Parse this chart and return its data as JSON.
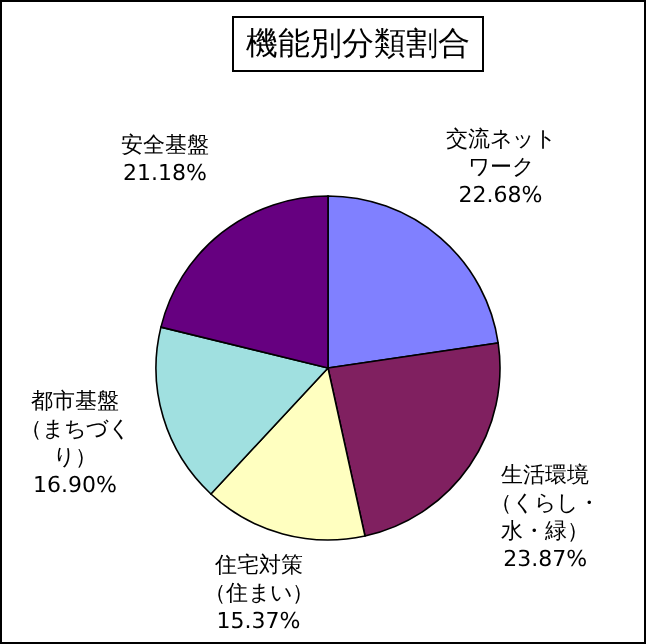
{
  "chart_data": {
    "type": "pie",
    "title": "機能別分類割合",
    "categories": [
      "交流ネットワーク",
      "生活環境（くらし・水・緑）",
      "住宅対策（住まい）",
      "都市基盤（まちづくり）",
      "安全基盤"
    ],
    "values": [
      22.68,
      23.87,
      15.37,
      16.9,
      21.18
    ],
    "value_labels": [
      "22.68%",
      "23.87%",
      "15.37%",
      "16.90%",
      "21.18%"
    ],
    "colors": [
      "#8080ff",
      "#802060",
      "#ffffc0",
      "#a0e0e0",
      "#660080"
    ]
  }
}
